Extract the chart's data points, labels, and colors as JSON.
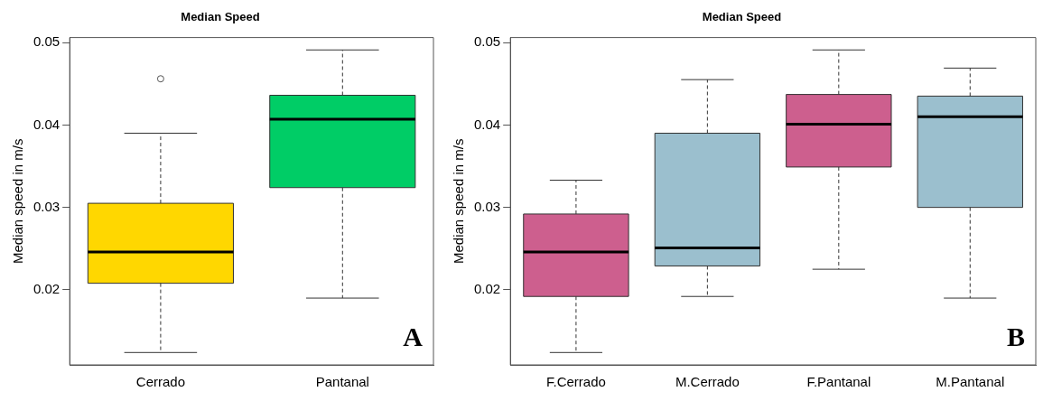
{
  "chart_data": [
    {
      "type": "box",
      "title": "Median Speed",
      "ylabel": "Median speed in m/s",
      "annotations": [
        "A"
      ],
      "categories": [
        "Cerrado",
        "Pantanal"
      ],
      "colors": [
        "#ffd700",
        "#00cd66"
      ],
      "boxes": [
        {
          "low": 0.0124,
          "q1": 0.0208,
          "median": 0.0246,
          "q3": 0.0305,
          "high": 0.039,
          "outliers": [
            0.0456
          ]
        },
        {
          "low": 0.019,
          "q1": 0.0324,
          "median": 0.0407,
          "q3": 0.0436,
          "high": 0.0491
        }
      ],
      "ylim": [
        0.0109,
        0.0506
      ],
      "yticks": [
        0.02,
        0.03,
        0.04,
        0.05
      ],
      "grid": false,
      "legend": false
    },
    {
      "type": "box",
      "title": "Median Speed",
      "ylabel": "Median speed in m/s",
      "annotations": [
        "B"
      ],
      "categories": [
        "F.Cerrado",
        "M.Cerrado",
        "F.Pantanal",
        "M.Pantanal"
      ],
      "colors": [
        "#cd5f8e",
        "#9bbfce",
        "#cd5f8e",
        "#9bbfce"
      ],
      "boxes": [
        {
          "low": 0.0124,
          "q1": 0.0192,
          "median": 0.0246,
          "q3": 0.0292,
          "high": 0.0333
        },
        {
          "low": 0.0192,
          "q1": 0.0229,
          "median": 0.0251,
          "q3": 0.039,
          "high": 0.0455
        },
        {
          "low": 0.0225,
          "q1": 0.0349,
          "median": 0.0401,
          "q3": 0.0437,
          "high": 0.0491
        },
        {
          "low": 0.019,
          "q1": 0.03,
          "median": 0.041,
          "q3": 0.0435,
          "high": 0.0469
        }
      ],
      "ylim": [
        0.0109,
        0.0506
      ],
      "yticks": [
        0.02,
        0.03,
        0.04,
        0.05
      ],
      "grid": false,
      "legend": false
    }
  ]
}
